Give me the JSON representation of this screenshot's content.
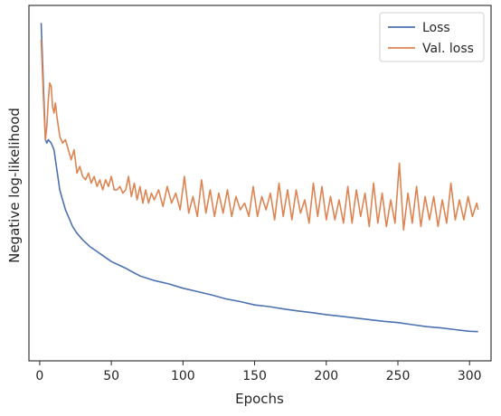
{
  "chart_data": {
    "type": "line",
    "title": "",
    "xlabel": "Epochs",
    "ylabel": "Negative log-likelihood",
    "xlim": [
      -7.5,
      315
    ],
    "ylim": [
      0,
      100
    ],
    "xticks": [
      0,
      50,
      100,
      150,
      200,
      250,
      300
    ],
    "yticks_shown": false,
    "grid": false,
    "legend_position": "top-right",
    "series": [
      {
        "name": "Loss",
        "color": "#4c72b0",
        "x": [
          1,
          3,
          4,
          5,
          6,
          8,
          10,
          12,
          14,
          16,
          18,
          20,
          23,
          26,
          30,
          35,
          40,
          45,
          50,
          55,
          60,
          65,
          70,
          80,
          90,
          100,
          110,
          120,
          130,
          140,
          150,
          160,
          170,
          180,
          190,
          200,
          210,
          220,
          230,
          240,
          250,
          260,
          270,
          280,
          290,
          300,
          306
        ],
        "y": [
          98,
          75,
          63,
          62,
          63,
          62,
          60,
          54,
          48,
          45,
          42,
          40,
          37,
          35,
          33,
          31,
          29.5,
          28,
          26.5,
          25.5,
          24.5,
          23.3,
          22.2,
          20.8,
          19.8,
          18.5,
          17.5,
          16.5,
          15.3,
          14.5,
          13.5,
          13,
          12.3,
          11.7,
          11.2,
          10.6,
          10.1,
          9.6,
          9.1,
          8.6,
          8.2,
          7.6,
          7,
          6.6,
          6.1,
          5.6,
          5.5
        ]
      },
      {
        "name": "Val. loss",
        "color": "#dd8452",
        "x": [
          1,
          3,
          4,
          5,
          6,
          7,
          8,
          9,
          10,
          11,
          12,
          14,
          16,
          18,
          20,
          22,
          24,
          26,
          28,
          30,
          32,
          34,
          36,
          38,
          40,
          42,
          44,
          46,
          48,
          50,
          52,
          54,
          56,
          58,
          60,
          62,
          64,
          66,
          68,
          70,
          72,
          74,
          76,
          78,
          80,
          83,
          86,
          89,
          92,
          95,
          98,
          101,
          104,
          107,
          110,
          113,
          116,
          119,
          122,
          125,
          128,
          131,
          134,
          137,
          140,
          143,
          146,
          149,
          152,
          155,
          158,
          161,
          164,
          167,
          170,
          173,
          176,
          179,
          182,
          185,
          188,
          191,
          194,
          197,
          200,
          203,
          206,
          209,
          212,
          215,
          218,
          221,
          224,
          227,
          230,
          233,
          236,
          239,
          242,
          245,
          248,
          251,
          254,
          257,
          260,
          263,
          266,
          269,
          272,
          275,
          278,
          281,
          284,
          287,
          290,
          293,
          296,
          299,
          302,
          305,
          306
        ],
        "y": [
          93,
          72,
          63,
          67,
          75,
          80,
          79,
          73,
          71,
          74,
          70,
          64,
          62,
          63,
          60,
          57,
          60,
          53,
          55,
          52,
          51,
          53,
          50,
          52,
          49,
          51,
          48,
          51,
          49,
          52,
          48,
          48,
          49,
          47,
          48,
          52,
          46,
          50,
          45,
          49,
          44,
          48,
          44,
          47,
          45,
          48,
          43,
          49,
          44,
          47,
          42,
          52,
          41,
          46,
          40,
          51,
          41,
          48,
          40,
          47,
          41,
          48,
          40,
          46,
          42,
          44,
          40,
          49,
          40,
          46,
          42,
          47,
          39,
          50,
          40,
          48,
          39,
          48,
          41,
          45,
          38,
          50,
          40,
          49,
          39,
          46,
          39,
          45,
          38,
          49,
          38,
          48,
          40,
          47,
          37,
          50,
          38,
          47,
          37,
          45,
          38,
          56,
          36,
          47,
          38,
          49,
          37,
          46,
          39,
          46,
          37,
          45,
          38,
          50,
          39,
          45,
          39,
          46,
          40,
          44,
          42
        ]
      }
    ]
  }
}
